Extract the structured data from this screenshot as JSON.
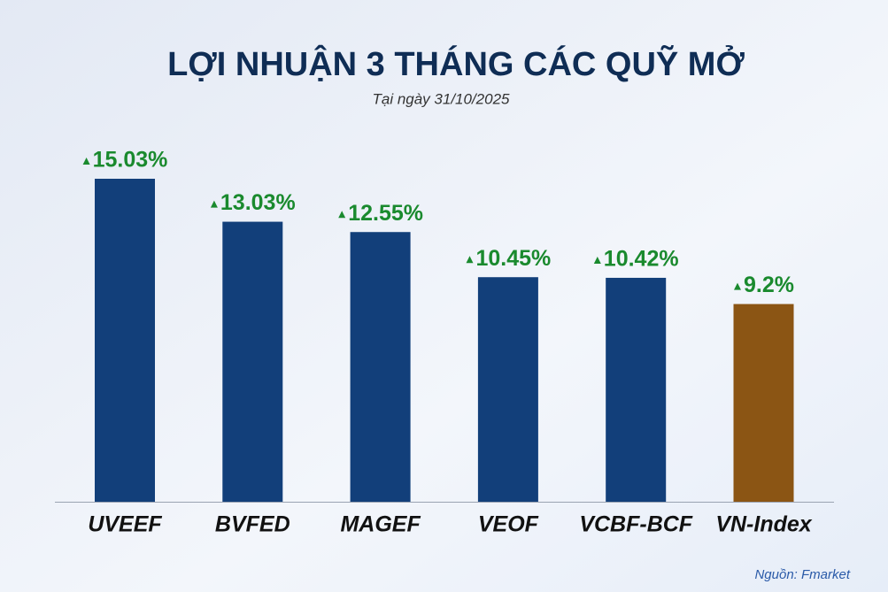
{
  "chart_data": {
    "type": "bar",
    "title": "LỢI NHUẬN 3 THÁNG CÁC QUỸ MỞ",
    "subtitle": "Tại ngày 31/10/2025",
    "categories": [
      "UVEEF",
      "BVFED",
      "MAGEF",
      "VEOF",
      "VCBF-BCF",
      "VN-Index"
    ],
    "values": [
      15.03,
      13.03,
      12.55,
      10.45,
      10.42,
      9.2
    ],
    "value_labels": [
      "15.03%",
      "13.03%",
      "12.55%",
      "10.45%",
      "10.42%",
      "9.2%"
    ],
    "colors": [
      "#123f7a",
      "#123f7a",
      "#123f7a",
      "#123f7a",
      "#123f7a",
      "#8b5514"
    ],
    "source": "Nguồn: Fmarket"
  }
}
